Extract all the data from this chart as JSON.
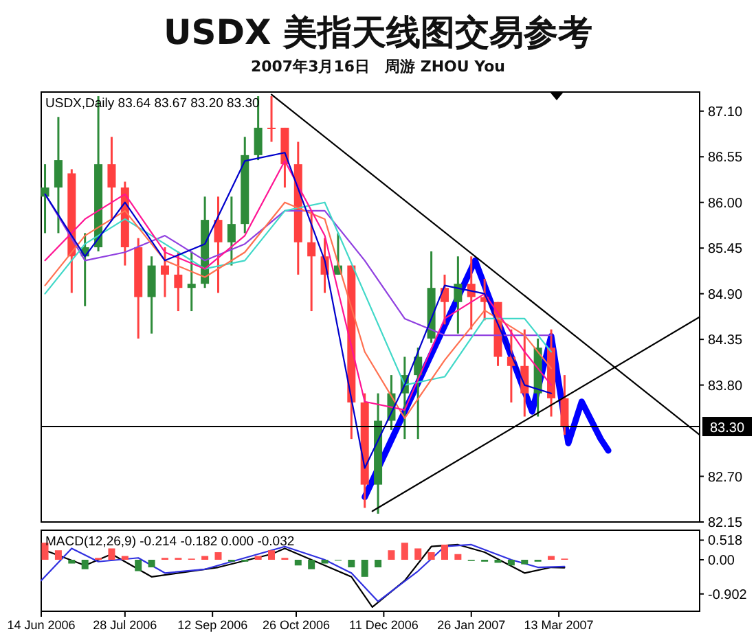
{
  "chart_data": [
    {
      "type": "candlestick",
      "title": "USDX 美指天线图交易参考",
      "subtitle": "2007年3月16日　周游 ZHOU You",
      "annotations": [
        "USDX,Daily  83.64 83.67 83.20 83.30"
      ],
      "x": [
        "2006-06-16",
        "2006-06-23",
        "2006-06-30",
        "2006-07-07",
        "2006-07-14",
        "2006-07-21",
        "2006-07-28",
        "2006-08-04",
        "2006-08-11",
        "2006-08-18",
        "2006-08-25",
        "2006-09-01",
        "2006-09-08",
        "2006-09-15",
        "2006-09-22",
        "2006-09-29",
        "2006-10-06",
        "2006-10-13",
        "2006-10-20",
        "2006-10-27",
        "2006-11-03",
        "2006-11-10",
        "2006-11-17",
        "2006-11-24",
        "2006-12-01",
        "2006-12-08",
        "2006-12-15",
        "2006-12-22",
        "2006-12-29",
        "2007-01-05",
        "2007-01-12",
        "2007-01-19",
        "2007-01-26",
        "2007-02-02",
        "2007-02-09",
        "2007-02-16",
        "2007-02-23",
        "2007-03-02",
        "2007-03-09",
        "2007-03-16"
      ],
      "ohlc": [
        [
          86.07,
          86.46,
          85.63,
          86.18
        ],
        [
          86.18,
          87.03,
          85.63,
          86.51
        ],
        [
          86.35,
          86.4,
          84.91,
          85.35
        ],
        [
          85.35,
          85.63,
          84.75,
          85.46
        ],
        [
          85.46,
          87.28,
          85.41,
          86.46
        ],
        [
          86.46,
          86.79,
          85.79,
          86.18
        ],
        [
          86.18,
          86.25,
          85.24,
          85.46
        ],
        [
          85.46,
          85.57,
          84.36,
          84.86
        ],
        [
          84.86,
          85.35,
          84.42,
          85.24
        ],
        [
          85.24,
          85.46,
          84.86,
          85.13
        ],
        [
          85.13,
          85.41,
          84.69,
          84.97
        ],
        [
          84.97,
          85.41,
          84.69,
          85.02
        ],
        [
          85.02,
          86.07,
          84.97,
          85.79
        ],
        [
          85.79,
          86.07,
          84.91,
          85.52
        ],
        [
          85.52,
          86.07,
          85.24,
          85.74
        ],
        [
          85.74,
          86.79,
          85.63,
          86.57
        ],
        [
          86.57,
          87.28,
          86.51,
          86.9
        ],
        [
          86.9,
          87.28,
          86.73,
          86.9
        ],
        [
          86.9,
          86.9,
          86.18,
          86.46
        ],
        [
          86.46,
          86.73,
          85.13,
          85.52
        ],
        [
          85.52,
          85.9,
          84.69,
          85.35
        ],
        [
          85.35,
          85.57,
          84.91,
          85.13
        ],
        [
          85.13,
          85.63,
          85.13,
          85.24
        ],
        [
          85.24,
          85.24,
          83.15,
          83.59
        ],
        [
          83.59,
          83.7,
          82.32,
          82.6
        ],
        [
          82.6,
          83.7,
          82.25,
          83.37
        ],
        [
          83.37,
          83.92,
          83.26,
          83.7
        ],
        [
          83.7,
          84.14,
          83.15,
          83.92
        ],
        [
          83.92,
          84.25,
          83.15,
          84.14
        ],
        [
          84.36,
          85.41,
          84.31,
          84.97
        ],
        [
          84.97,
          85.13,
          84.53,
          84.8
        ],
        [
          84.8,
          85.35,
          84.42,
          85.02
        ],
        [
          85.02,
          85.35,
          84.47,
          84.86
        ],
        [
          84.86,
          85.08,
          84.58,
          84.8
        ],
        [
          84.8,
          84.8,
          84.03,
          84.14
        ],
        [
          84.14,
          84.47,
          83.59,
          84.03
        ],
        [
          84.03,
          84.47,
          83.42,
          83.7
        ],
        [
          83.7,
          84.36,
          83.42,
          84.25
        ],
        [
          84.25,
          84.47,
          83.42,
          83.64
        ],
        [
          83.64,
          83.92,
          83.2,
          83.3
        ]
      ],
      "colors": [
        "#2e8b3a",
        "#2e8b3a",
        "#ff4040",
        "#2e8b3a",
        "#2e8b3a",
        "#ff4040",
        "#ff4040",
        "#ff4040",
        "#2e8b3a",
        "#ff4040",
        "#ff4040",
        "#2e8b3a",
        "#2e8b3a",
        "#ff4040",
        "#2e8b3a",
        "#2e8b3a",
        "#2e8b3a",
        "#ff4040",
        "#ff4040",
        "#ff4040",
        "#ff4040",
        "#ff4040",
        "#2e8b3a",
        "#ff4040",
        "#ff4040",
        "#2e8b3a",
        "#2e8b3a",
        "#2e8b3a",
        "#2e8b3a",
        "#2e8b3a",
        "#ff4040",
        "#2e8b3a",
        "#ff4040",
        "#ff4040",
        "#ff4040",
        "#ff4040",
        "#ff4040",
        "#2e8b3a",
        "#ff4040",
        "#ff4040"
      ],
      "series": [
        {
          "type": "line",
          "color": "#9040e0",
          "x": [
            "2006-06-16",
            "2006-07-07",
            "2006-07-28",
            "2006-08-18",
            "2006-09-08",
            "2006-09-29",
            "2006-10-20",
            "2006-11-10",
            "2006-12-01",
            "2006-12-22",
            "2007-01-12",
            "2007-02-02",
            "2007-02-23",
            "2007-03-09"
          ],
          "values": [
            86.1,
            85.3,
            85.4,
            85.6,
            85.3,
            85.5,
            85.9,
            85.9,
            85.3,
            84.6,
            84.4,
            84.4,
            84.4,
            84.4
          ]
        },
        {
          "type": "line",
          "color": "#40d8c8",
          "x": [
            "2006-06-16",
            "2006-07-07",
            "2006-07-28",
            "2006-08-18",
            "2006-09-08",
            "2006-09-29",
            "2006-10-20",
            "2006-11-10",
            "2006-12-01",
            "2006-12-22",
            "2007-01-12",
            "2007-02-02",
            "2007-02-23",
            "2007-03-09"
          ],
          "values": [
            84.9,
            85.5,
            85.8,
            85.5,
            85.2,
            85.3,
            85.9,
            86.0,
            84.9,
            83.8,
            83.9,
            84.6,
            84.6,
            84.2
          ]
        },
        {
          "type": "line",
          "color": "#ff7050",
          "x": [
            "2006-06-16",
            "2006-07-07",
            "2006-07-28",
            "2006-08-18",
            "2006-09-08",
            "2006-09-29",
            "2006-10-20",
            "2006-11-10",
            "2006-12-01",
            "2006-12-22",
            "2007-01-12",
            "2007-02-02",
            "2007-02-23",
            "2007-03-09"
          ],
          "values": [
            85.0,
            85.6,
            85.9,
            85.3,
            85.1,
            85.4,
            86.0,
            85.8,
            84.2,
            83.4,
            84.1,
            84.7,
            84.4,
            84.0
          ]
        },
        {
          "type": "line",
          "color": "#ff1493",
          "x": [
            "2006-06-16",
            "2006-07-07",
            "2006-07-28",
            "2006-08-18",
            "2006-09-08",
            "2006-09-29",
            "2006-10-20",
            "2006-11-10",
            "2006-12-01",
            "2006-12-22",
            "2007-01-12",
            "2007-02-02",
            "2007-02-23",
            "2007-03-09"
          ],
          "values": [
            85.3,
            85.8,
            86.1,
            85.4,
            85.2,
            85.6,
            86.5,
            85.6,
            83.6,
            83.5,
            84.6,
            84.9,
            84.2,
            83.8
          ]
        },
        {
          "type": "line",
          "color": "#0000cc",
          "x": [
            "2006-06-16",
            "2006-07-07",
            "2006-07-28",
            "2006-08-18",
            "2006-09-08",
            "2006-09-29",
            "2006-10-20",
            "2006-11-10",
            "2006-12-01",
            "2006-12-22",
            "2007-01-12",
            "2007-02-02",
            "2007-02-23",
            "2007-03-09"
          ],
          "values": [
            86.1,
            85.35,
            86.0,
            85.3,
            85.5,
            86.5,
            86.6,
            85.3,
            82.8,
            83.8,
            85.0,
            84.9,
            83.8,
            83.7
          ]
        },
        {
          "type": "line",
          "color": "#000000",
          "x": [
            "2006-10-13",
            "2007-05-26"
          ],
          "values": [
            87.3,
            83.2
          ]
        },
        {
          "type": "line",
          "color": "#000000",
          "x": [
            "2006-12-05",
            "2007-05-26"
          ],
          "values": [
            82.28,
            84.62
          ]
        },
        {
          "type": "line",
          "color": "#0000ff",
          "x": [
            "2006-12-01",
            "2007-01-28",
            "2007-02-27",
            "2007-03-09",
            "2007-03-18",
            "2007-03-25",
            "2007-04-04",
            "2007-04-08"
          ],
          "values": [
            82.45,
            85.3,
            83.48,
            84.39,
            83.1,
            83.6,
            83.15,
            83.01
          ]
        }
      ],
      "ref_lines": [
        {
          "axis": "y",
          "value": 83.3,
          "label": "83.30",
          "color": "#000000"
        }
      ],
      "xlim": [
        "2006-06-14",
        "2007-05-26"
      ],
      "ylim": [
        82.15,
        87.33
      ],
      "yticks": [
        82.15,
        {
          "value": 82.7,
          "label": "82.70"
        },
        {
          "value": 83.8,
          "label": "83.80"
        },
        84.35,
        {
          "value": 84.9,
          "label": "84.90"
        },
        85.45,
        {
          "value": 86.0,
          "label": "86.00"
        },
        86.55,
        {
          "value": 87.1,
          "label": "87.10"
        }
      ],
      "tick_labels": "y"
    },
    {
      "type": "bar",
      "annotations": [
        "MACD(12,26,9) -0.214 -0.182 0.000 -0.032"
      ],
      "series": [
        {
          "type": "bar",
          "x": [
            "2006-06-16",
            "2006-06-23",
            "2006-06-30",
            "2006-07-07",
            "2006-07-14",
            "2006-07-21",
            "2006-07-28",
            "2006-08-04",
            "2006-08-11",
            "2006-08-18",
            "2006-08-25",
            "2006-09-01",
            "2006-09-08",
            "2006-09-15",
            "2006-09-22",
            "2006-09-29",
            "2006-10-06",
            "2006-10-13",
            "2006-10-20",
            "2006-10-27",
            "2006-11-03",
            "2006-11-10",
            "2006-11-17",
            "2006-11-24",
            "2006-12-01",
            "2006-12-08",
            "2006-12-15",
            "2006-12-22",
            "2006-12-29",
            "2007-01-05",
            "2007-01-12",
            "2007-01-19",
            "2007-01-26",
            "2007-02-02",
            "2007-02-09",
            "2007-02-16",
            "2007-02-23",
            "2007-03-02",
            "2007-03-09",
            "2007-03-16"
          ],
          "values": [
            0.45,
            0.25,
            -0.1,
            -0.25,
            0.05,
            0.3,
            0.1,
            -0.3,
            -0.2,
            0.05,
            0.05,
            0.03,
            0.1,
            0.2,
            -0.05,
            -0.05,
            0.1,
            0.25,
            0.05,
            -0.15,
            -0.25,
            -0.1,
            -0.02,
            -0.2,
            -0.45,
            -0.2,
            0.25,
            0.45,
            0.3,
            0.2,
            0.4,
            0.15,
            -0.03,
            -0.05,
            -0.08,
            -0.15,
            -0.12,
            -0.05,
            0.1,
            0.03
          ],
          "colors": [
            "#ff5050",
            "#ff5050",
            "#2e8b3a",
            "#2e8b3a",
            "#ff5050",
            "#ff5050",
            "#ff5050",
            "#2e8b3a",
            "#2e8b3a",
            "#ff5050",
            "#ff5050",
            "#ff5050",
            "#ff5050",
            "#ff5050",
            "#2e8b3a",
            "#2e8b3a",
            "#ff5050",
            "#ff5050",
            "#ff5050",
            "#2e8b3a",
            "#2e8b3a",
            "#2e8b3a",
            "#2e8b3a",
            "#2e8b3a",
            "#2e8b3a",
            "#2e8b3a",
            "#ff5050",
            "#ff5050",
            "#ff5050",
            "#ff5050",
            "#ff5050",
            "#ff5050",
            "#2e8b3a",
            "#2e8b3a",
            "#2e8b3a",
            "#2e8b3a",
            "#2e8b3a",
            "#2e8b3a",
            "#ff5050",
            "#ff5050"
          ]
        },
        {
          "type": "line",
          "color": "#000000",
          "x": [
            "2006-06-16",
            "2006-07-07",
            "2006-07-21",
            "2006-08-11",
            "2006-08-25",
            "2006-09-15",
            "2006-10-13",
            "2006-10-20",
            "2006-11-10",
            "2006-11-24",
            "2006-12-05",
            "2006-12-22",
            "2007-01-05",
            "2007-01-19",
            "2007-02-02",
            "2007-02-23",
            "2007-03-09",
            "2007-03-16"
          ],
          "values": [
            0.25,
            -0.15,
            0.15,
            -0.45,
            -0.35,
            -0.2,
            0.15,
            0.3,
            -0.15,
            -0.45,
            -1.25,
            -0.55,
            0.35,
            0.4,
            0.2,
            -0.35,
            -0.2,
            -0.21
          ]
        },
        {
          "type": "line",
          "color": "#3030e0",
          "x": [
            "2006-06-14",
            "2006-06-30",
            "2006-07-14",
            "2006-08-04",
            "2006-08-18",
            "2006-09-08",
            "2006-09-29",
            "2006-10-20",
            "2006-11-10",
            "2006-11-24",
            "2006-12-08",
            "2006-12-29",
            "2007-01-12",
            "2007-01-26",
            "2007-02-16",
            "2007-03-02",
            "2007-03-16"
          ],
          "values": [
            -0.55,
            0.3,
            -0.05,
            0.05,
            -0.35,
            -0.25,
            0.05,
            0.35,
            0.0,
            -0.35,
            -1.1,
            -0.3,
            0.35,
            0.4,
            0.0,
            -0.2,
            -0.18
          ]
        }
      ],
      "xlim": [
        "2006-06-14",
        "2007-05-26"
      ],
      "xticks": [
        {
          "value": "2006-06-14",
          "label": "14 Jun 2006"
        },
        {
          "value": "2006-07-28",
          "label": "28 Jul 2006"
        },
        {
          "value": "2006-09-12",
          "label": "12 Sep 2006"
        },
        {
          "value": "2006-10-26",
          "label": "26 Oct 2006"
        },
        {
          "value": "2006-12-11",
          "label": "11 Dec 2006"
        },
        {
          "value": "2007-01-26",
          "label": "26 Jan 2007"
        },
        {
          "value": "2007-03-13",
          "label": "13 Mar 2007"
        }
      ],
      "ylim": [
        -1.36,
        0.78
      ],
      "yticks": [
        0.518,
        {
          "value": 0,
          "label": "0.00"
        },
        -0.902
      ]
    }
  ]
}
